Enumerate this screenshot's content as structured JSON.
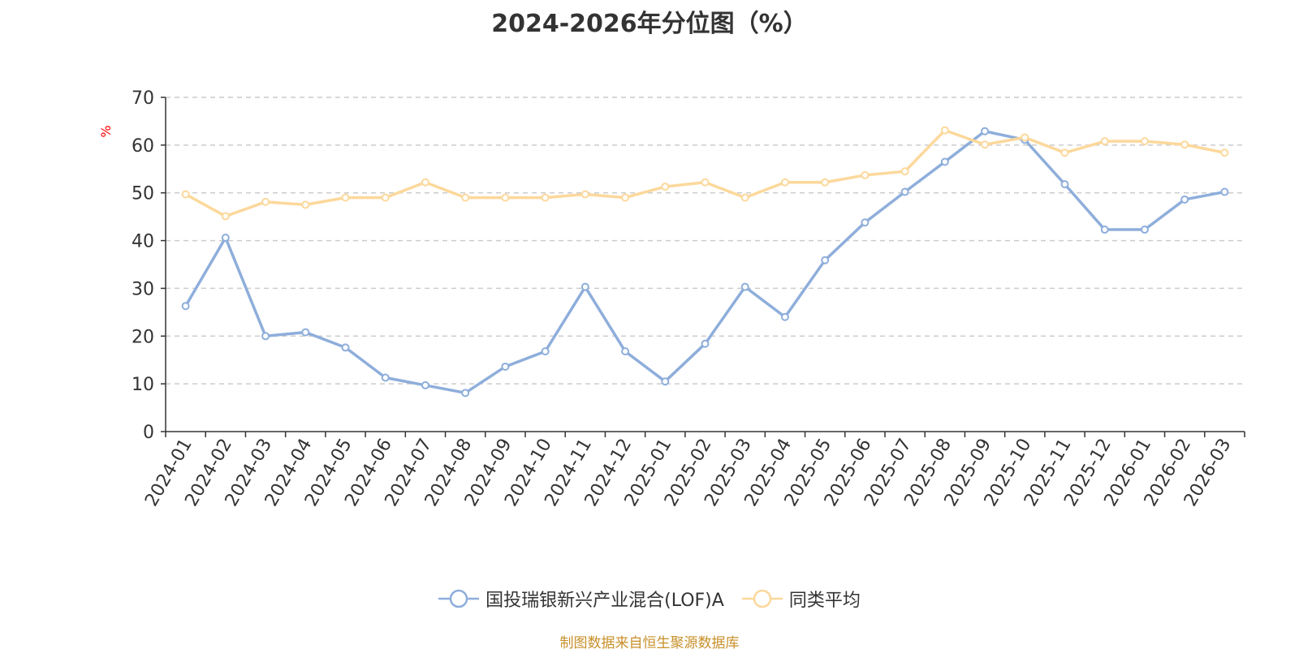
{
  "chart_data": {
    "type": "line",
    "title": "2024-2026年分位图（%）",
    "ylabel": "%",
    "xlabel": "",
    "ylim": [
      0,
      70
    ],
    "yticks": [
      0,
      10,
      20,
      30,
      40,
      50,
      60,
      70
    ],
    "grid": true,
    "legend_position": "bottom-center",
    "categories": [
      "2024-01",
      "2024-02",
      "2024-03",
      "2024-04",
      "2024-05",
      "2024-06",
      "2024-07",
      "2024-08",
      "2024-09",
      "2024-10",
      "2024-11",
      "2024-12",
      "2025-01",
      "2025-02",
      "2025-03",
      "2025-04",
      "2025-05",
      "2025-06",
      "2025-07",
      "2025-08",
      "2025-09",
      "2025-10",
      "2025-11",
      "2025-12",
      "2026-01",
      "2026-02",
      "2026-03"
    ],
    "series": [
      {
        "name": "国投瑞银新兴产业混合(LOF)A",
        "color": "#8eaedb",
        "values": [
          26.3,
          40.6,
          20.0,
          20.8,
          17.6,
          11.3,
          9.7,
          8.1,
          13.6,
          16.8,
          30.3,
          16.8,
          10.5,
          18.4,
          30.3,
          24.0,
          35.9,
          43.8,
          50.2,
          56.5,
          62.9,
          61.1,
          51.8,
          42.3,
          42.3,
          48.6,
          50.2
        ]
      },
      {
        "name": "同类平均",
        "color": "#fcd89b",
        "values": [
          49.7,
          45.1,
          48.1,
          47.5,
          49.0,
          49.0,
          52.2,
          49.0,
          49.0,
          49.0,
          49.7,
          49.0,
          51.3,
          52.2,
          49.0,
          52.2,
          52.2,
          53.7,
          54.5,
          63.1,
          60.1,
          61.6,
          58.4,
          60.8,
          60.8,
          60.1,
          58.4
        ]
      }
    ]
  },
  "footer": {
    "source": "制图数据来自恒生聚源数据库",
    "source_color": "#c8902a"
  },
  "axis_label_color": "#ff0000"
}
